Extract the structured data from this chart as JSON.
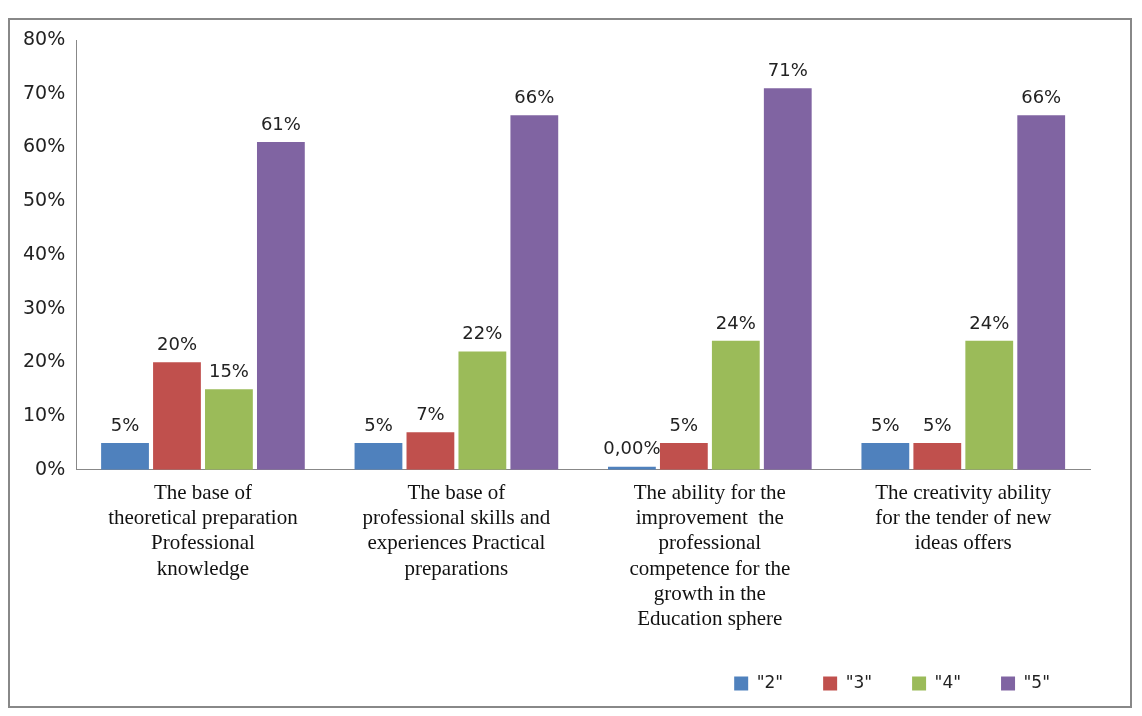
{
  "chart_data": {
    "type": "bar",
    "categories": [
      "The base of theoretical preparation Professional knowledge",
      "The base of professional skills and experiences Practical preparations",
      "The ability for the improvement  the professional competence for the growth in the Education sphere",
      "The creativity ability for the tender of new ideas offers"
    ],
    "series": [
      {
        "name": "\"2\"",
        "color": "#4f81bd",
        "values": [
          5,
          5,
          0,
          5
        ],
        "value_labels": [
          "5%",
          "5%",
          "0,00%",
          "5%"
        ]
      },
      {
        "name": "\"3\"",
        "color": "#c0504d",
        "values": [
          20,
          7,
          5,
          5
        ],
        "value_labels": [
          "20%",
          "7%",
          "5%",
          "5%"
        ]
      },
      {
        "name": "\"4\"",
        "color": "#9bbb59",
        "values": [
          15,
          22,
          24,
          24
        ],
        "value_labels": [
          "15%",
          "22%",
          "24%",
          "24%"
        ]
      },
      {
        "name": "\"5\"",
        "color": "#8064a2",
        "values": [
          61,
          66,
          71,
          66
        ],
        "value_labels": [
          "61%",
          "66%",
          "71%",
          "66%"
        ]
      }
    ],
    "ylim": [
      0,
      80
    ],
    "yticks": [
      {
        "value": 0,
        "label": "0%"
      },
      {
        "value": 10,
        "label": "10%"
      },
      {
        "value": 20,
        "label": "20%"
      },
      {
        "value": 30,
        "label": "30%"
      },
      {
        "value": 40,
        "label": "40%"
      },
      {
        "value": 50,
        "label": "50%"
      },
      {
        "value": 60,
        "label": "60%"
      },
      {
        "value": 70,
        "label": "70%"
      },
      {
        "value": 80,
        "label": "80%"
      }
    ],
    "grid": false,
    "legend": "bottom right"
  }
}
